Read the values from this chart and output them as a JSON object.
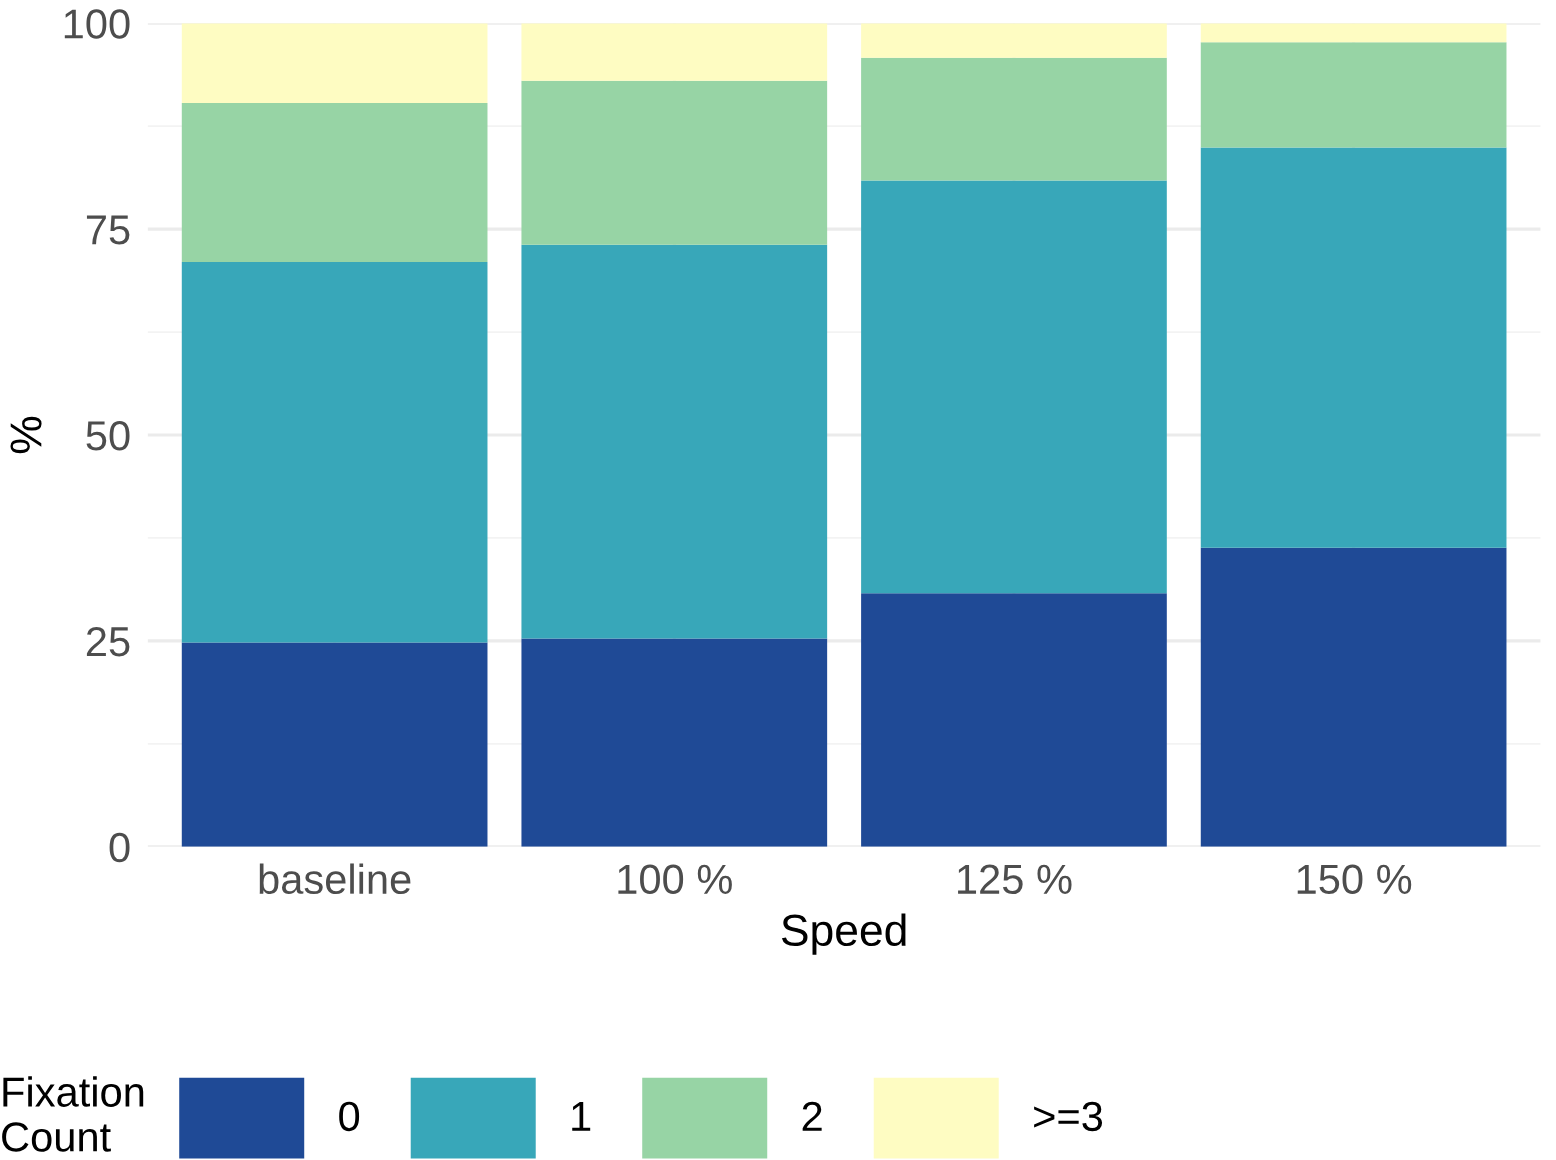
{
  "chart_data": {
    "type": "bar",
    "stacked": true,
    "xlabel": "Speed",
    "ylabel": "%",
    "legend_title": "Fixation\nCount",
    "legend": "bottom",
    "grid": true,
    "categories": [
      "baseline",
      "100 %",
      "125 %",
      "150 %"
    ],
    "series": [
      {
        "name": "0",
        "color": "#1f4a96",
        "values": [
          24.8,
          25.3,
          30.8,
          36.3
        ]
      },
      {
        "name": "1",
        "color": "#38a7b9",
        "values": [
          46.2,
          47.8,
          50.1,
          48.6
        ]
      },
      {
        "name": "2",
        "color": "#97d4a5",
        "values": [
          19.3,
          19.9,
          14.9,
          12.8
        ]
      },
      {
        "name": ">=3",
        "color": "#fefcc2",
        "values": [
          9.7,
          7.0,
          4.2,
          2.3
        ]
      }
    ],
    "ylim": [
      0,
      100
    ],
    "yticks": [
      0,
      25,
      50,
      75,
      100
    ]
  }
}
